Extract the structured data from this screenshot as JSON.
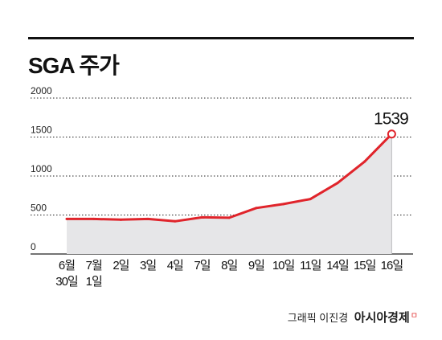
{
  "chart_data": {
    "type": "area",
    "title": "SGA 주가",
    "categories": [
      [
        "6월",
        "30일"
      ],
      [
        "7월",
        "1일"
      ],
      [
        "2일"
      ],
      [
        "3일"
      ],
      [
        "4일"
      ],
      [
        "7일"
      ],
      [
        "8일"
      ],
      [
        "9일"
      ],
      [
        "10일"
      ],
      [
        "11일"
      ],
      [
        "14일"
      ],
      [
        "15일"
      ],
      [
        "16일"
      ]
    ],
    "values": [
      450,
      450,
      440,
      450,
      420,
      470,
      465,
      590,
      640,
      705,
      910,
      1185,
      1539
    ],
    "ylim": [
      0,
      2000
    ],
    "yticks": [
      0,
      500,
      1000,
      1500,
      2000
    ],
    "grid": true,
    "data_labels": [
      {
        "index": 12,
        "text": "1539"
      }
    ],
    "colors": {
      "line": "#e0242b",
      "fill": "#e6e6e8",
      "grid": "#222222",
      "marker_fill": "#ffffff"
    }
  },
  "credit": {
    "author": "그래픽 이진경",
    "brand": "아시아경제",
    "brand_mark": "ㅁ"
  }
}
